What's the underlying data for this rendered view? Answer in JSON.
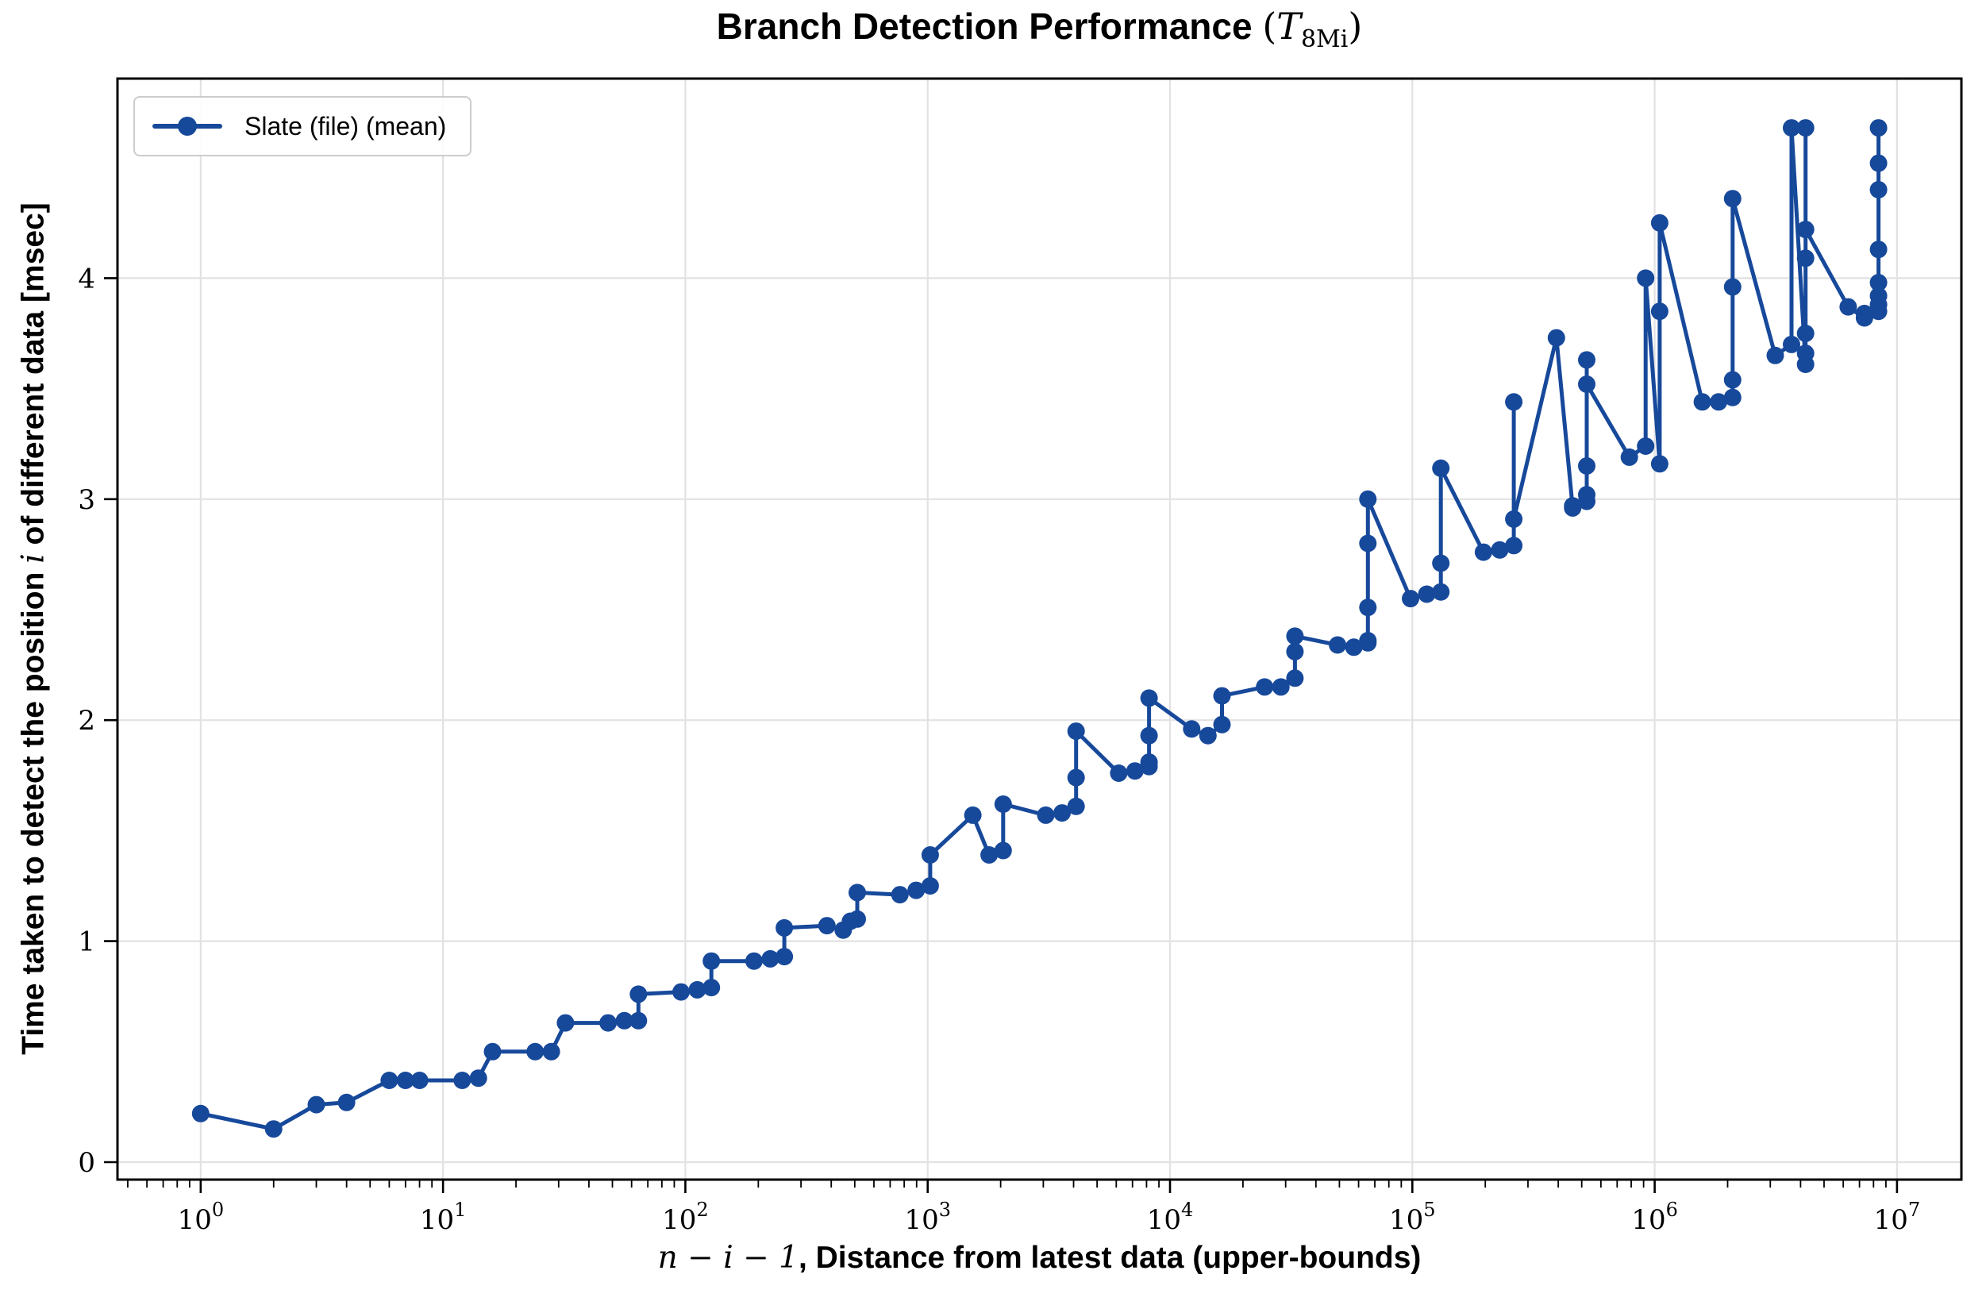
{
  "title": {
    "main": "Branch Detection Performance ",
    "math_open": "(",
    "math_T": "T",
    "math_sub": "8Mi",
    "math_close": ")"
  },
  "legend": {
    "label": "Slate (file) (mean)"
  },
  "axes": {
    "xlabel_math": "n − i − 1",
    "xlabel_rest": ", Distance from latest data (upper-bounds)",
    "ylabel_pre": "Time taken to detect the position ",
    "ylabel_math": "i",
    "ylabel_post": " of different data [msec]"
  },
  "colors": {
    "line": "#17499B",
    "grid": "#e2e2e2",
    "spine": "#000000",
    "background": "#ffffff",
    "legend_border": "#cccccc"
  },
  "chart_data": {
    "type": "line",
    "title": "Branch Detection Performance (T_8Mi)",
    "xlabel": "n − i − 1, Distance from latest data (upper-bounds)",
    "ylabel": "Time taken to detect the position i of different data [msec]",
    "x_scale": "log",
    "grid": true,
    "legend_position": "upper left",
    "xlim": [
      0.4535,
      18437000
    ],
    "ylim": [
      -0.079,
      4.903
    ],
    "x_tick_exponents": [
      0,
      1,
      2,
      3,
      4,
      5,
      6,
      7
    ],
    "y_ticks": [
      0,
      1,
      2,
      3,
      4
    ],
    "series": [
      {
        "name": "Slate (file) (mean)",
        "color": "#17499B",
        "points": [
          [
            1,
            0.22
          ],
          [
            2,
            0.15
          ],
          [
            3,
            0.26
          ],
          [
            4,
            0.27
          ],
          [
            6,
            0.37
          ],
          [
            7,
            0.37
          ],
          [
            8,
            0.37
          ],
          [
            12,
            0.37
          ],
          [
            14,
            0.38
          ],
          [
            16,
            0.5
          ],
          [
            24,
            0.5
          ],
          [
            28,
            0.5
          ],
          [
            32,
            0.63
          ],
          [
            48,
            0.63
          ],
          [
            56,
            0.64
          ],
          [
            64,
            0.64
          ],
          [
            64,
            0.76
          ],
          [
            96,
            0.77
          ],
          [
            112,
            0.78
          ],
          [
            128,
            0.79
          ],
          [
            128,
            0.91
          ],
          [
            192,
            0.91
          ],
          [
            224,
            0.92
          ],
          [
            256,
            0.93
          ],
          [
            256,
            1.06
          ],
          [
            384,
            1.07
          ],
          [
            448,
            1.05
          ],
          [
            480,
            1.09
          ],
          [
            512,
            1.1
          ],
          [
            512,
            1.22
          ],
          [
            768,
            1.21
          ],
          [
            896,
            1.23
          ],
          [
            1024,
            1.25
          ],
          [
            1024,
            1.39
          ],
          [
            1536,
            1.57
          ],
          [
            1792,
            1.39
          ],
          [
            2048,
            1.41
          ],
          [
            2048,
            1.62
          ],
          [
            3072,
            1.57
          ],
          [
            3584,
            1.58
          ],
          [
            4096,
            1.61
          ],
          [
            4096,
            1.74
          ],
          [
            4096,
            1.95
          ],
          [
            6144,
            1.76
          ],
          [
            7168,
            1.77
          ],
          [
            8192,
            1.79
          ],
          [
            8192,
            1.81
          ],
          [
            8192,
            1.93
          ],
          [
            8192,
            2.1
          ],
          [
            12288,
            1.96
          ],
          [
            14336,
            1.93
          ],
          [
            16384,
            1.98
          ],
          [
            16384,
            2.11
          ],
          [
            24576,
            2.15
          ],
          [
            28672,
            2.15
          ],
          [
            32768,
            2.19
          ],
          [
            32768,
            2.31
          ],
          [
            32768,
            2.38
          ],
          [
            49152,
            2.34
          ],
          [
            57344,
            2.33
          ],
          [
            65536,
            2.35
          ],
          [
            65536,
            2.36
          ],
          [
            65536,
            2.51
          ],
          [
            65536,
            2.8
          ],
          [
            65536,
            3.0
          ],
          [
            98304,
            2.55
          ],
          [
            114688,
            2.57
          ],
          [
            131072,
            2.58
          ],
          [
            131072,
            2.71
          ],
          [
            131072,
            3.14
          ],
          [
            196608,
            2.76
          ],
          [
            229376,
            2.77
          ],
          [
            262144,
            2.79
          ],
          [
            262144,
            3.44
          ],
          [
            262144,
            2.91
          ],
          [
            393216,
            3.73
          ],
          [
            458752,
            2.96
          ],
          [
            458752,
            2.97
          ],
          [
            524288,
            2.99
          ],
          [
            524288,
            3.02
          ],
          [
            524288,
            3.15
          ],
          [
            524288,
            3.63
          ],
          [
            524288,
            3.52
          ],
          [
            786432,
            3.19
          ],
          [
            917504,
            3.24
          ],
          [
            917504,
            4.0
          ],
          [
            1048576,
            3.16
          ],
          [
            1048576,
            3.85
          ],
          [
            1048576,
            4.25
          ],
          [
            1572864,
            3.44
          ],
          [
            1835008,
            3.44
          ],
          [
            2097152,
            3.46
          ],
          [
            2097152,
            3.54
          ],
          [
            2097152,
            3.96
          ],
          [
            2097152,
            4.36
          ],
          [
            3145728,
            3.65
          ],
          [
            3670016,
            3.7
          ],
          [
            3670016,
            4.68
          ],
          [
            4194304,
            3.61
          ],
          [
            4194304,
            3.66
          ],
          [
            4194304,
            3.75
          ],
          [
            4194304,
            4.09
          ],
          [
            4194304,
            4.68
          ],
          [
            4194304,
            4.22
          ],
          [
            6291456,
            3.87
          ],
          [
            7340032,
            3.82
          ],
          [
            7340032,
            3.84
          ],
          [
            8388608,
            3.85
          ],
          [
            8388608,
            3.88
          ],
          [
            8388608,
            3.92
          ],
          [
            8388608,
            3.98
          ],
          [
            8388608,
            4.13
          ],
          [
            8388608,
            4.4
          ],
          [
            8388608,
            4.52
          ],
          [
            8388608,
            4.68
          ]
        ]
      }
    ]
  }
}
